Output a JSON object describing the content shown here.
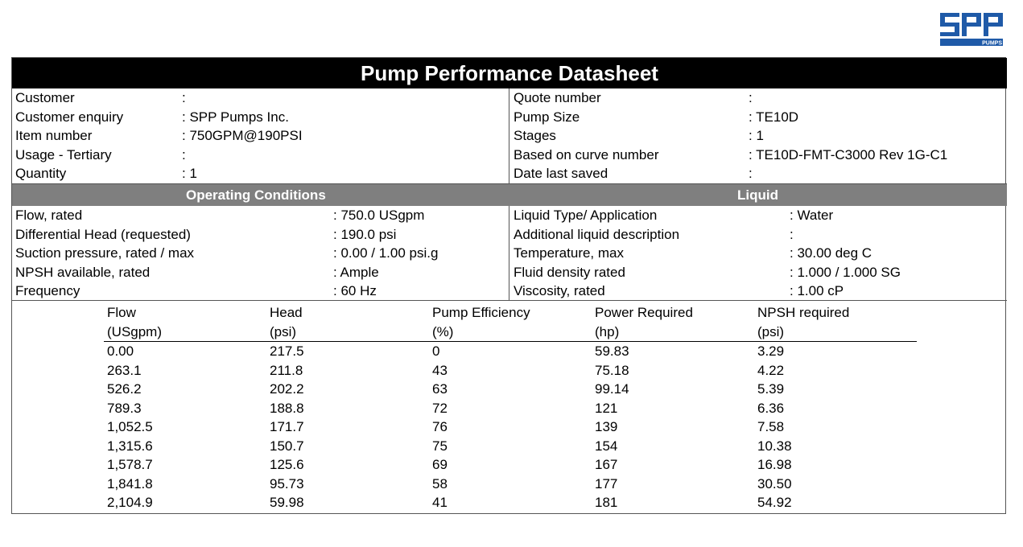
{
  "logo": {
    "text": "SPP",
    "subtext": "PUMPS",
    "color": "#1f5aa8"
  },
  "title": "Pump Performance Datasheet",
  "info_left": [
    {
      "label": "Customer",
      "value": ":"
    },
    {
      "label": "Customer enquiry",
      "value": ": SPP Pumps Inc."
    },
    {
      "label": "Item number",
      "value": ": 750GPM@190PSI"
    },
    {
      "label": "Usage - Tertiary",
      "value": ":"
    },
    {
      "label": "Quantity",
      "value": ": 1"
    }
  ],
  "info_right": [
    {
      "label": "Quote number",
      "value": ":"
    },
    {
      "label": "Pump Size",
      "value": ": TE10D"
    },
    {
      "label": "Stages",
      "value": ": 1"
    },
    {
      "label": "Based on curve number",
      "value": ": TE10D-FMT-C3000 Rev 1G-C1"
    },
    {
      "label": "Date last saved",
      "value": ":"
    }
  ],
  "sections": {
    "operating": "Operating Conditions",
    "liquid": "Liquid"
  },
  "operating_conditions": [
    {
      "label": "Flow, rated",
      "value": ": 750.0 USgpm"
    },
    {
      "label": "Differential Head (requested)",
      "value": ": 190.0 psi"
    },
    {
      "label": "Suction pressure, rated / max",
      "value": ": 0.00 / 1.00 psi.g"
    },
    {
      "label": "NPSH available, rated",
      "value": ": Ample"
    },
    {
      "label": "Frequency",
      "value": ": 60 Hz"
    }
  ],
  "liquid": [
    {
      "label": "Liquid Type/ Application",
      "value": ": Water"
    },
    {
      "label": "Additional liquid description",
      "value": ":"
    },
    {
      "label": "Temperature, max",
      "value": ": 30.00 deg C"
    },
    {
      "label": "Fluid density rated",
      "value": ": 1.000 / 1.000 SG"
    },
    {
      "label": "Viscosity, rated",
      "value": ": 1.00 cP"
    }
  ],
  "performance_table": {
    "headers": [
      "Flow",
      "Head",
      "Pump Efficiency",
      "Power Required",
      "NPSH required"
    ],
    "units": [
      "(USgpm)",
      "(psi)",
      "(%)",
      "(hp)",
      "(psi)"
    ],
    "rows": [
      [
        "0.00",
        "217.5",
        "0",
        "59.83",
        "3.29"
      ],
      [
        "263.1",
        "211.8",
        "43",
        "75.18",
        "4.22"
      ],
      [
        "526.2",
        "202.2",
        "63",
        "99.14",
        "5.39"
      ],
      [
        "789.3",
        "188.8",
        "72",
        "121",
        "6.36"
      ],
      [
        "1,052.5",
        "171.7",
        "76",
        "139",
        "7.58"
      ],
      [
        "1,315.6",
        "150.7",
        "75",
        "154",
        "10.38"
      ],
      [
        "1,578.7",
        "125.6",
        "69",
        "167",
        "16.98"
      ],
      [
        "1,841.8",
        "95.73",
        "58",
        "177",
        "30.50"
      ],
      [
        "2,104.9",
        "59.98",
        "41",
        "181",
        "54.92"
      ]
    ]
  }
}
